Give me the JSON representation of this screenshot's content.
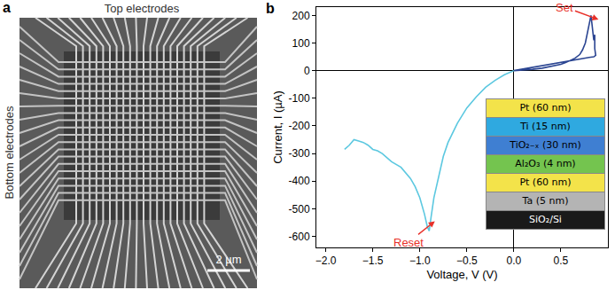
{
  "panel_a": {
    "label": "a",
    "top_label": "Top electrodes",
    "side_label": "Bottom electrodes",
    "scale_bar": "2 µm"
  },
  "chart_data": {
    "type": "line",
    "panel_label": "b",
    "x_label": "Voltage, V (V)",
    "y_label": "Current, I (µA)",
    "xlim": [
      -2.1,
      1.0
    ],
    "xticks": [
      {
        "value": -2,
        "label": "−2.0"
      },
      {
        "value": -1.5,
        "label": "−1.5"
      },
      {
        "value": -1,
        "label": "−1.0"
      },
      {
        "value": -0.5,
        "label": "−0.5"
      },
      {
        "value": 0,
        "label": "0.0"
      },
      0.5
    ],
    "ylim": [
      -640,
      230
    ],
    "yticks": [
      -600,
      -500,
      -400,
      -300,
      -200,
      -100,
      0,
      100,
      200
    ],
    "grid": false,
    "series": [
      {
        "name": "Set",
        "color": "#2b4592",
        "x": [
          0,
          0.1,
          0.2,
          0.3,
          0.4,
          0.5,
          0.55,
          0.6,
          0.65,
          0.7,
          0.73,
          0.76,
          0.78,
          0.8,
          0.81,
          0.82,
          0.83,
          0.84,
          0.84,
          0.85,
          0.86,
          0.86,
          0.87,
          0.85,
          0.8,
          0.7,
          0.6,
          0.5,
          0.4,
          0.3,
          0.2,
          0.1,
          0
        ],
        "values": [
          0,
          2,
          5,
          9,
          15,
          23,
          29,
          36,
          45,
          58,
          75,
          100,
          130,
          165,
          185,
          200,
          170,
          140,
          160,
          110,
          130,
          80,
          55,
          50,
          48,
          42,
          36,
          30,
          24,
          18,
          12,
          6,
          0
        ]
      },
      {
        "name": "Reset",
        "color": "#5cc8e0",
        "x": [
          0,
          -0.1,
          -0.2,
          -0.3,
          -0.4,
          -0.5,
          -0.6,
          -0.7,
          -0.75,
          -0.8,
          -0.85,
          -0.88,
          -0.9,
          -0.92,
          -0.95,
          -1.0,
          -1.05,
          -1.1,
          -1.2,
          -1.3,
          -1.35,
          -1.4,
          -1.45,
          -1.5,
          -1.55,
          -1.6,
          -1.65,
          -1.7,
          -1.75,
          -1.8
        ],
        "values": [
          0,
          -15,
          -35,
          -60,
          -95,
          -135,
          -190,
          -260,
          -310,
          -380,
          -460,
          -530,
          -580,
          -565,
          -520,
          -460,
          -420,
          -390,
          -350,
          -330,
          -315,
          -300,
          -290,
          -285,
          -270,
          -260,
          -255,
          -250,
          -270,
          -285
        ]
      }
    ],
    "annotations": [
      {
        "text": "Set",
        "x": 0.9,
        "y": 185,
        "color": "#e8312a"
      },
      {
        "text": "Reset",
        "x": -0.84,
        "y": -545,
        "color": "#e8312a"
      }
    ]
  },
  "inset": {
    "layers": [
      {
        "text": "Pt (60 nm)",
        "color": "#f3e34a"
      },
      {
        "text": "Ti (15 nm)",
        "color": "#2fa9e0"
      },
      {
        "text": "TiO₂₋ₓ (30 nm)",
        "color": "#3f7fd2"
      },
      {
        "text": "Al₂O₃ (4 nm)",
        "color": "#74c44f"
      },
      {
        "text": "Pt (60 nm)",
        "color": "#f3e34a"
      },
      {
        "text": "Ta (5 nm)",
        "color": "#b4b4b4"
      },
      {
        "text": "SiO₂/Si",
        "color": "#1a1a1a"
      }
    ]
  }
}
